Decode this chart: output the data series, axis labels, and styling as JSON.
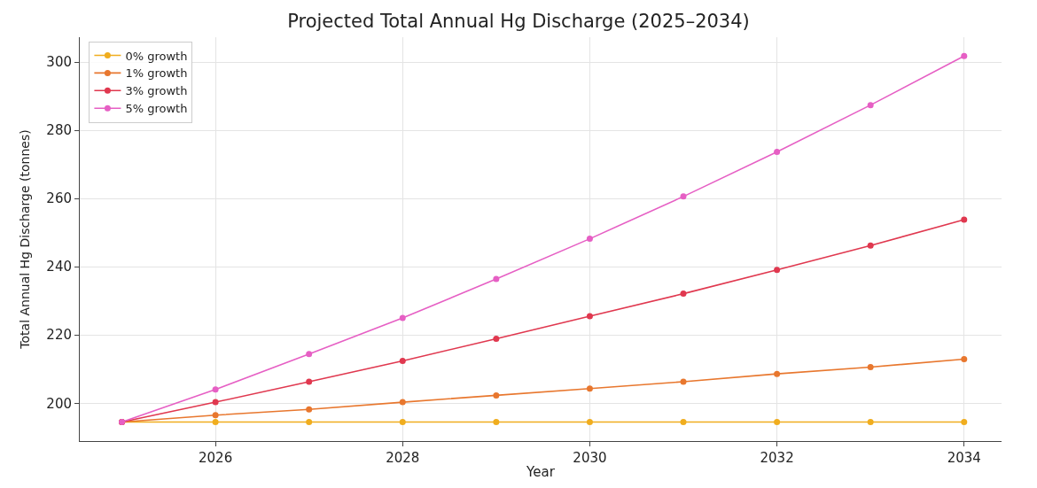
{
  "chart_data": {
    "type": "line",
    "title": "Projected Total Annual Hg Discharge (2025–2034)",
    "xlabel": "Year",
    "ylabel": "Total Annual Hg Discharge (tonnes)",
    "x": [
      2025,
      2026,
      2027,
      2028,
      2029,
      2030,
      2031,
      2032,
      2033,
      2034
    ],
    "series": [
      {
        "name": "0% growth",
        "color": "#f0ad1e",
        "values": [
          194.5,
          194.5,
          194.5,
          194.5,
          194.5,
          194.5,
          194.5,
          194.5,
          194.5,
          194.5
        ]
      },
      {
        "name": "1% growth",
        "color": "#e8772e",
        "values": [
          194.5,
          196.5,
          198.2,
          200.3,
          202.3,
          204.3,
          206.3,
          208.6,
          210.6,
          212.9
        ]
      },
      {
        "name": "3% growth",
        "color": "#e0384f",
        "values": [
          194.5,
          200.3,
          206.3,
          212.4,
          218.9,
          225.5,
          232.1,
          239.1,
          246.2,
          253.8
        ]
      },
      {
        "name": "5% growth",
        "color": "#e65fc4",
        "values": [
          194.5,
          204.0,
          214.4,
          225.0,
          236.4,
          248.2,
          260.6,
          273.7,
          287.4,
          301.8
        ]
      }
    ],
    "xlim": [
      2024.55,
      2034.4
    ],
    "xticks": [
      2026,
      2028,
      2030,
      2032,
      2034
    ],
    "ylim": [
      188.9,
      307.3
    ],
    "yticks": [
      200,
      220,
      240,
      260,
      280,
      300
    ],
    "grid": true,
    "legend": "top left",
    "marker": "circle",
    "line_style": "solid"
  }
}
